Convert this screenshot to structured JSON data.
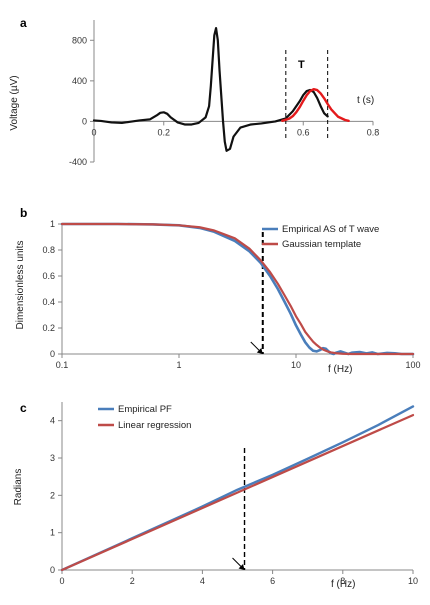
{
  "colors": {
    "ecg": "#111111",
    "gaussian_fit": "#e41a1c",
    "empirical": "#4a7ebb",
    "template": "#be4b48",
    "dashed": "#000000",
    "axis": "#888888"
  },
  "chart_data": [
    {
      "type": "line",
      "panel_label": "a",
      "ylabel": "Voltage (µV)",
      "xlabel": "t (s)",
      "peak_label": "T",
      "xlim": [
        0,
        0.8
      ],
      "ylim": [
        -400,
        1000
      ],
      "xticks": [
        {
          "value": 0,
          "label": "0"
        },
        {
          "value": 0.2,
          "label": "0.2"
        },
        {
          "value": 0.6,
          "label": "0.6"
        },
        {
          "value": 0.8,
          "label": "0.8"
        }
      ],
      "yticks": [
        {
          "value": 800,
          "label": "800"
        },
        {
          "value": 400,
          "label": "400"
        },
        {
          "value": 0,
          "label": "0"
        },
        {
          "value": -400,
          "label": "-400"
        }
      ],
      "vlines": [
        0.55,
        0.67
      ],
      "series": [
        {
          "key": "ecg",
          "x": [
            0,
            0.02,
            0.05,
            0.08,
            0.1,
            0.13,
            0.16,
            0.18,
            0.19,
            0.2,
            0.21,
            0.22,
            0.24,
            0.26,
            0.28,
            0.3,
            0.32,
            0.33,
            0.335,
            0.34,
            0.345,
            0.35,
            0.355,
            0.36,
            0.37,
            0.375,
            0.38,
            0.39,
            0.4,
            0.42,
            0.45,
            0.48,
            0.5,
            0.52,
            0.55,
            0.57,
            0.59,
            0.6,
            0.61,
            0.62,
            0.63,
            0.64,
            0.65,
            0.66,
            0.67
          ],
          "y": [
            10,
            5,
            -10,
            -15,
            -5,
            10,
            20,
            60,
            85,
            90,
            75,
            40,
            -10,
            -30,
            -30,
            -15,
            40,
            150,
            350,
            600,
            850,
            920,
            800,
            500,
            0,
            -200,
            -290,
            -270,
            -150,
            -60,
            -30,
            -20,
            -10,
            0,
            30,
            100,
            200,
            260,
            300,
            310,
            290,
            230,
            150,
            80,
            50
          ]
        },
        {
          "key": "gaussian_fit",
          "x": [
            0.54,
            0.56,
            0.57,
            0.58,
            0.59,
            0.6,
            0.61,
            0.62,
            0.63,
            0.64,
            0.65,
            0.66,
            0.67,
            0.68,
            0.7,
            0.72,
            0.73
          ],
          "y": [
            6,
            28,
            52,
            91,
            142,
            203,
            259,
            300,
            318,
            309,
            276,
            228,
            172,
            120,
            46,
            14,
            6
          ]
        }
      ]
    },
    {
      "type": "line",
      "panel_label": "b",
      "ylabel": "Dimensionless units",
      "xlabel": "f (Hz)",
      "xscale": "log",
      "xlim": [
        0.1,
        100
      ],
      "ylim": [
        0,
        1
      ],
      "xticks": [
        {
          "value": 0.1,
          "label": "0.1"
        },
        {
          "value": 1,
          "label": "1"
        },
        {
          "value": 10,
          "label": "10"
        },
        {
          "value": 100,
          "label": "100"
        }
      ],
      "yticks": [
        {
          "value": 1,
          "label": "1"
        },
        {
          "value": 0.8,
          "label": "0.8"
        },
        {
          "value": 0.6,
          "label": "0.6"
        },
        {
          "value": 0.4,
          "label": "0.4"
        },
        {
          "value": 0.2,
          "label": "0.2"
        },
        {
          "value": 0,
          "label": "0"
        }
      ],
      "vline": 5.2,
      "arrow_at": 5.2,
      "legend": [
        "Empirical AS of T wave",
        "Gaussian template"
      ],
      "series": [
        {
          "key": "empirical",
          "x": [
            0.1,
            0.3,
            0.6,
            1,
            1.5,
            2,
            3,
            4,
            5,
            6,
            7,
            8,
            9,
            10,
            11,
            12,
            13,
            14,
            15,
            16,
            17,
            18,
            19,
            20,
            21,
            22,
            24,
            26,
            28,
            30,
            35,
            40,
            45,
            50,
            60,
            70,
            80,
            100
          ],
          "y": [
            1,
            1,
            0.997,
            0.99,
            0.97,
            0.94,
            0.87,
            0.79,
            0.7,
            0.6,
            0.5,
            0.4,
            0.31,
            0.22,
            0.15,
            0.09,
            0.05,
            0.025,
            0.02,
            0.03,
            0.045,
            0.04,
            0.02,
            0.005,
            0.0,
            0.01,
            0.02,
            0.01,
            0.0,
            0.01,
            0.015,
            0.005,
            0.012,
            0.0,
            0.008,
            0.005,
            0.0,
            0.0
          ]
        },
        {
          "key": "template",
          "x": [
            0.1,
            0.3,
            0.6,
            1,
            1.5,
            2,
            3,
            4,
            5,
            6,
            7,
            8,
            9,
            10,
            11,
            12,
            13,
            14,
            15,
            16,
            17,
            18,
            19,
            20,
            22,
            25,
            30,
            40,
            60,
            100
          ],
          "y": [
            1,
            1,
            0.997,
            0.99,
            0.975,
            0.95,
            0.89,
            0.81,
            0.72,
            0.63,
            0.54,
            0.45,
            0.37,
            0.29,
            0.23,
            0.17,
            0.13,
            0.095,
            0.07,
            0.05,
            0.035,
            0.025,
            0.017,
            0.012,
            0.006,
            0.002,
            0.0,
            0.0,
            0.0,
            0.0
          ]
        }
      ]
    },
    {
      "type": "line",
      "panel_label": "c",
      "ylabel": "Radians",
      "xlabel": "f (Hz)",
      "xlim": [
        0,
        10
      ],
      "ylim": [
        0,
        4.5
      ],
      "xticks": [
        {
          "value": 0,
          "label": "0"
        },
        {
          "value": 2,
          "label": "2"
        },
        {
          "value": 4,
          "label": "4"
        },
        {
          "value": 6,
          "label": "6"
        },
        {
          "value": 8,
          "label": "8"
        },
        {
          "value": 10,
          "label": "10"
        }
      ],
      "yticks": [
        {
          "value": 4,
          "label": "4"
        },
        {
          "value": 3,
          "label": "3"
        },
        {
          "value": 2,
          "label": "2"
        },
        {
          "value": 1,
          "label": "1"
        },
        {
          "value": 0,
          "label": "0"
        }
      ],
      "vline": 5.2,
      "arrow_at": 5.2,
      "legend": [
        "Empirical PF",
        "Linear regression"
      ],
      "series": [
        {
          "key": "empirical",
          "x": [
            0,
            2,
            4,
            5,
            6,
            7,
            8,
            9,
            10
          ],
          "y": [
            0,
            0.85,
            1.7,
            2.15,
            2.55,
            2.98,
            3.42,
            3.88,
            4.38
          ]
        },
        {
          "key": "template",
          "x": [
            0,
            10
          ],
          "y": [
            0,
            4.15
          ]
        }
      ]
    }
  ]
}
